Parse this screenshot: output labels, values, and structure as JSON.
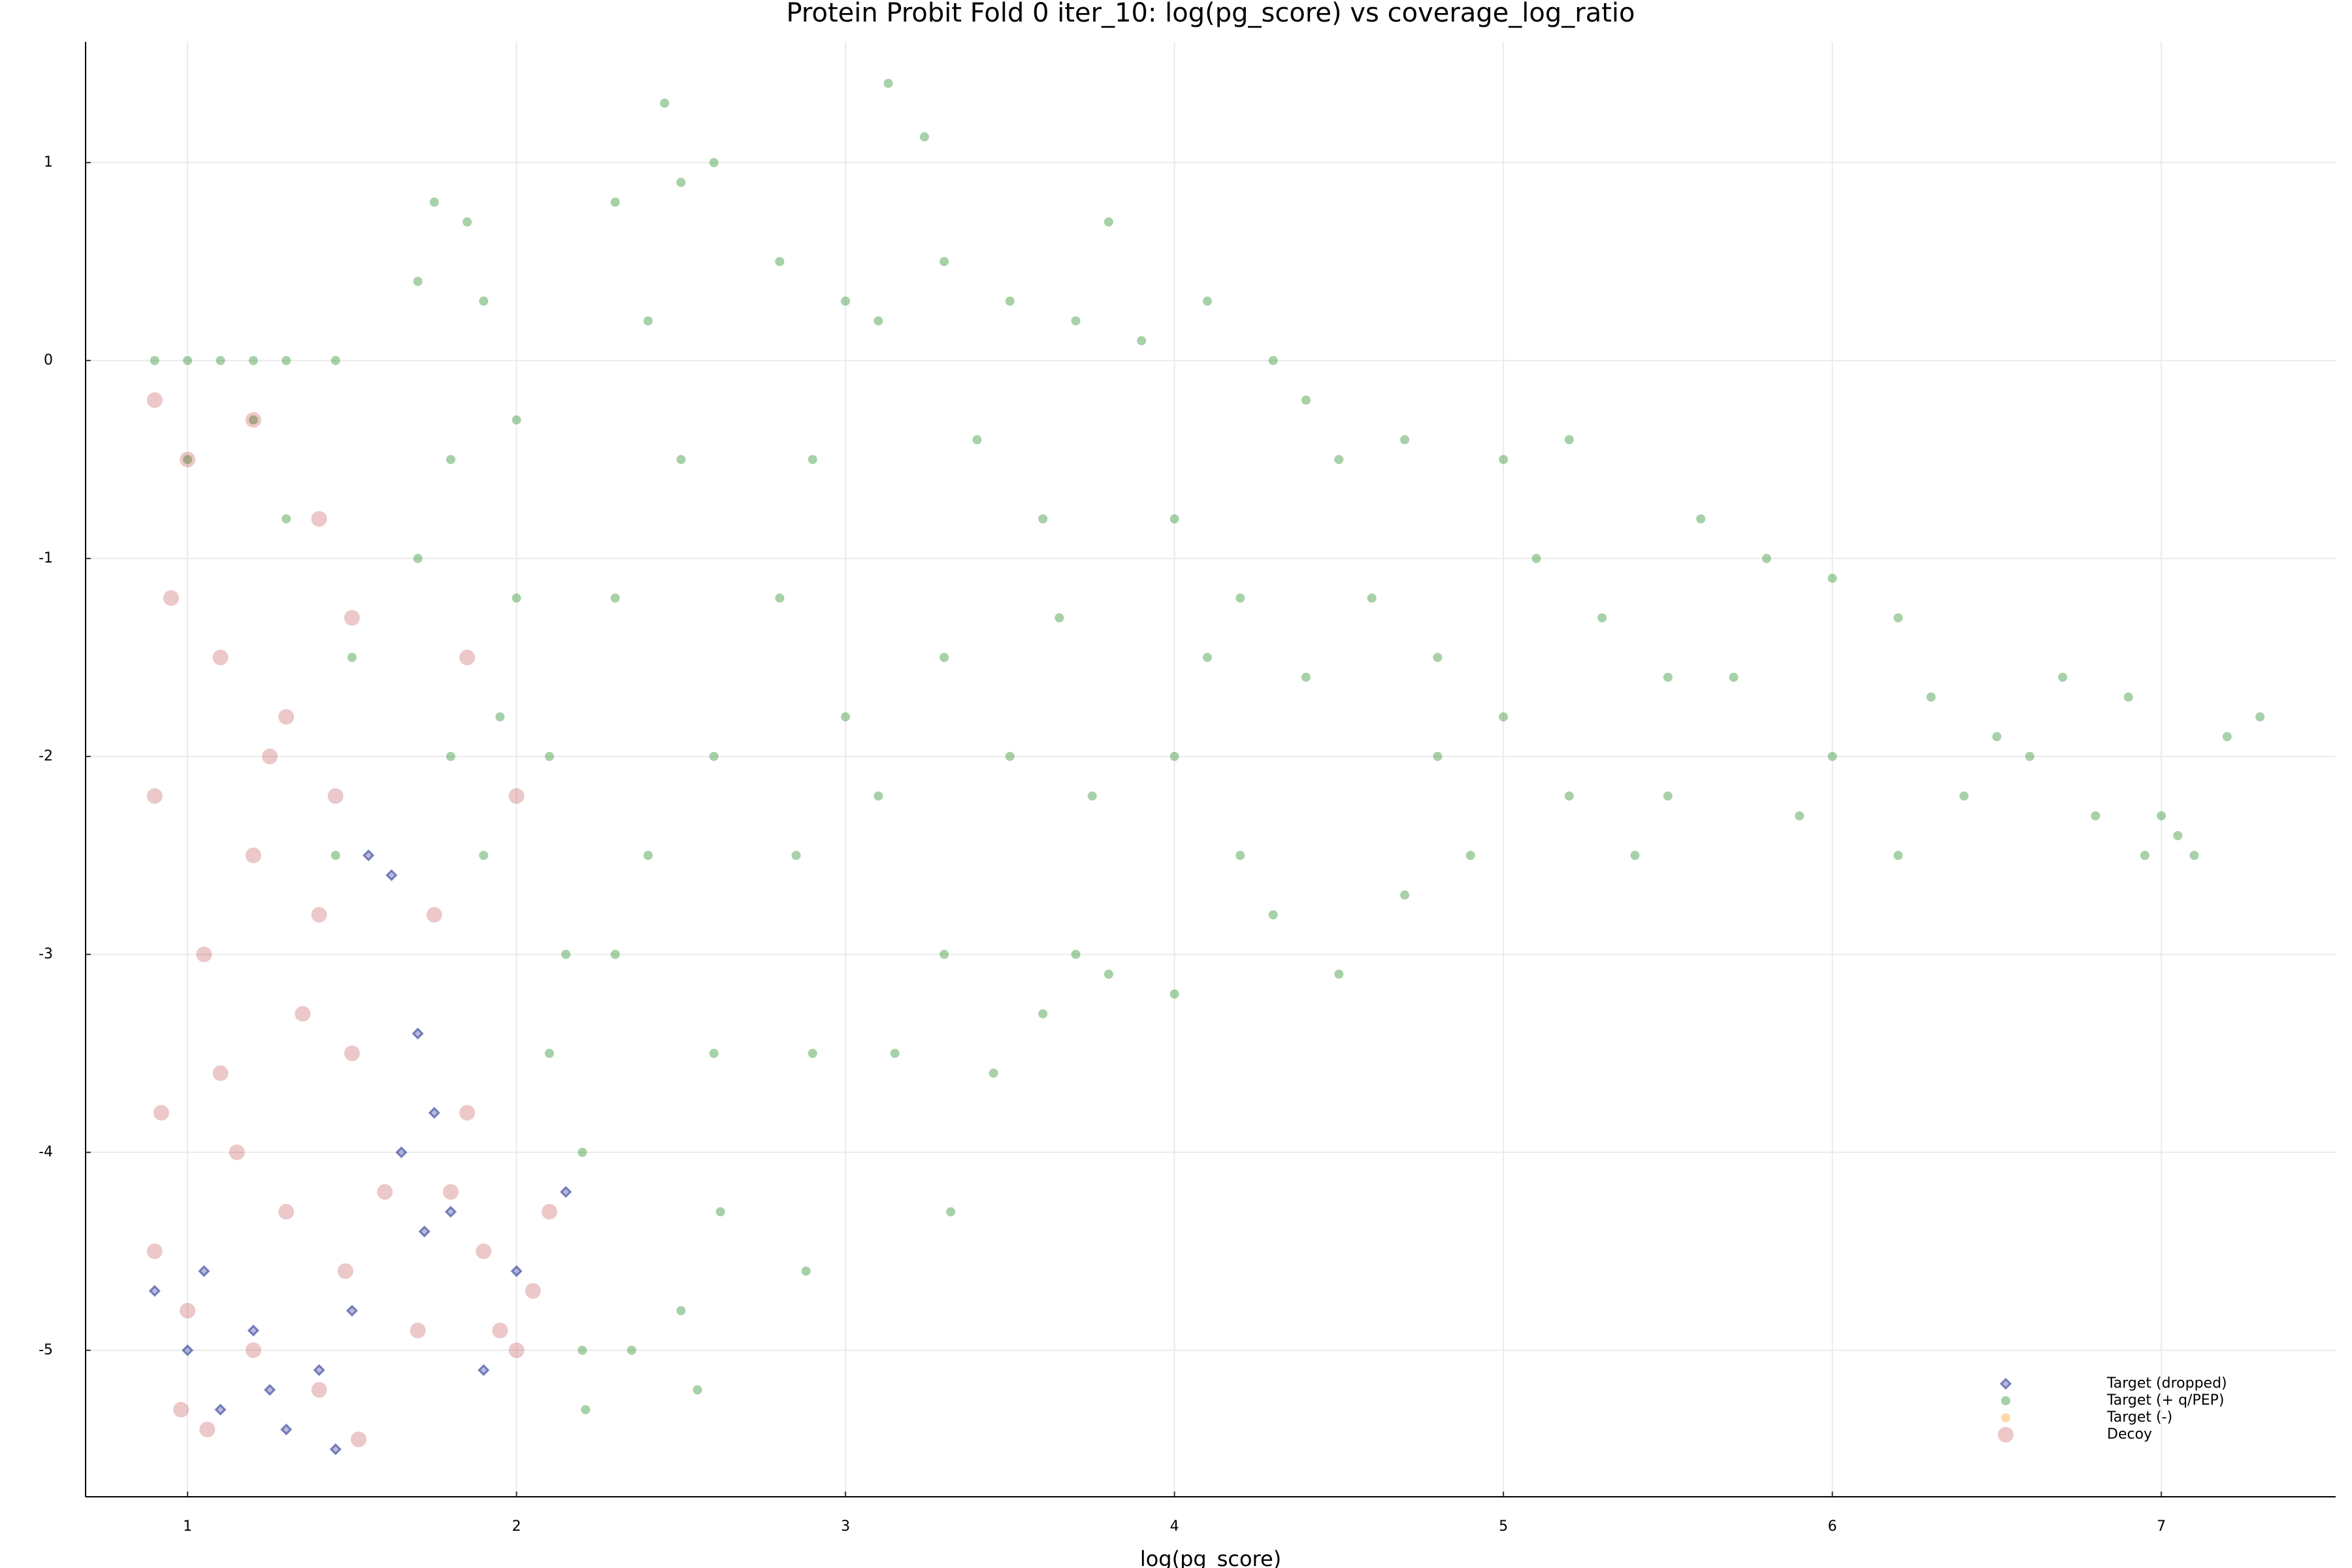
{
  "chart_data": {
    "type": "scatter",
    "title": "Protein Probit Fold 0 iter_10: log(pg_score) vs coverage_log_ratio",
    "x_label": "log(pg_score)",
    "xlim": [
      0.69,
      7.53
    ],
    "ylim": [
      -5.74,
      1.61
    ],
    "xticks": [
      1,
      2,
      3,
      4,
      5,
      6,
      7
    ],
    "yticks": [
      -5,
      -4,
      -3,
      -2,
      -1,
      0,
      1
    ],
    "grid": true,
    "legend": "lower right",
    "series": [
      {
        "name": "Target (dropped)",
        "color": "#2d3a9a",
        "marker": "diamond",
        "x": [
          0.9,
          1.0,
          1.1,
          1.2,
          1.3,
          1.4,
          1.5,
          1.45,
          1.05,
          1.25,
          1.7,
          1.75,
          1.8,
          2.15,
          1.65,
          1.55,
          1.62,
          1.9,
          2.0,
          1.72
        ],
        "values": [
          -4.7,
          -5.0,
          -5.3,
          -4.9,
          -5.4,
          -5.1,
          -4.8,
          -5.5,
          -4.6,
          -5.2,
          -3.4,
          -3.8,
          -4.3,
          -4.2,
          -4.0,
          -2.5,
          -2.6,
          -5.1,
          -4.6,
          -4.4
        ]
      },
      {
        "name": "Target (+ q/PEP)",
        "color": "#228b22",
        "marker": "circle",
        "x": [
          0.9,
          1.0,
          1.1,
          1.2,
          1.3,
          1.45,
          1.0,
          1.3,
          1.5,
          1.45,
          1.2,
          1.7,
          1.75,
          1.85,
          1.9,
          1.8,
          1.7,
          2.0,
          2.1,
          1.9,
          2.15,
          2.2,
          2.2,
          2.21,
          2.0,
          1.95,
          2.1,
          1.8,
          2.3,
          2.5,
          2.6,
          2.4,
          2.5,
          2.3,
          2.6,
          2.4,
          2.6,
          2.62,
          2.5,
          2.55,
          2.35,
          2.3,
          2.8,
          3.0,
          3.1,
          2.9,
          2.8,
          3.0,
          2.85,
          2.9,
          2.88,
          3.15,
          3.1,
          3.13,
          2.45,
          3.24,
          3.3,
          3.5,
          3.7,
          3.4,
          3.6,
          3.3,
          3.5,
          3.3,
          3.32,
          3.45,
          3.6,
          3.7,
          3.8,
          3.65,
          3.8,
          3.75,
          3.9,
          4.1,
          4.3,
          4.5,
          4.0,
          4.2,
          4.4,
          4.0,
          4.2,
          4.0,
          4.3,
          4.5,
          4.1,
          4.4,
          4.7,
          5.0,
          5.2,
          4.6,
          4.8,
          5.0,
          5.2,
          5.4,
          4.9,
          5.3,
          5.1,
          4.8,
          5.5,
          4.7,
          5.6,
          5.8,
          6.0,
          6.2,
          5.7,
          6.0,
          6.2,
          6.4,
          5.9,
          6.3,
          6.5,
          5.5,
          6.6,
          6.8,
          6.9,
          7.0,
          7.1,
          7.2,
          7.3,
          7.05,
          6.7,
          6.95
        ],
        "values": [
          0,
          0,
          0,
          0,
          0,
          0,
          -0.5,
          -0.8,
          -1.5,
          -2.5,
          -0.3,
          0.4,
          0.8,
          0.7,
          0.3,
          -0.5,
          -1,
          -1.2,
          -2,
          -2.5,
          -3,
          -4,
          -5,
          -5.3,
          -0.3,
          -1.8,
          -3.5,
          -2,
          0.8,
          0.9,
          1.0,
          0.2,
          -0.5,
          -1.2,
          -2,
          -2.5,
          -3.5,
          -4.3,
          -4.8,
          -5.2,
          -5,
          -3,
          0.5,
          0.3,
          0.2,
          -0.5,
          -1.2,
          -1.8,
          -2.5,
          -3.5,
          -4.6,
          -3.5,
          -2.2,
          1.4,
          1.3,
          1.13,
          0.5,
          0.3,
          0.2,
          -0.4,
          -0.8,
          -1.5,
          -2,
          -3,
          -4.3,
          -3.6,
          -3.3,
          -3,
          -3.1,
          -1.3,
          0.7,
          -2.2,
          0.1,
          0.3,
          0.0,
          -0.5,
          -0.8,
          -1.2,
          -1.6,
          -2.0,
          -2.5,
          -3.2,
          -2.8,
          -3.1,
          -1.5,
          -0.2,
          -0.4,
          -0.5,
          -0.4,
          -1.2,
          -1.5,
          -1.8,
          -2.2,
          -2.5,
          -2.5,
          -1.3,
          -1.0,
          -2.0,
          -1.6,
          -2.7,
          -0.8,
          -1.0,
          -1.1,
          -1.3,
          -1.6,
          -2.0,
          -2.5,
          -2.2,
          -2.3,
          -1.7,
          -1.9,
          -2.2,
          -2.0,
          -2.3,
          -1.7,
          -2.3,
          -2.5,
          -1.9,
          -1.8,
          -2.4,
          -1.6,
          -2.5
        ]
      },
      {
        "name": "Target (-)",
        "color": "#f5a623",
        "marker": "circle",
        "x": [],
        "values": []
      },
      {
        "name": "Decoy",
        "color": "#b22222",
        "marker": "circle",
        "x": [
          0.9,
          1.0,
          1.2,
          1.4,
          0.95,
          1.1,
          1.3,
          1.5,
          0.9,
          1.2,
          1.4,
          1.05,
          1.35,
          1.5,
          0.92,
          1.15,
          1.3,
          1.48,
          1.0,
          1.2,
          1.4,
          1.06,
          1.52,
          0.98,
          1.25,
          1.45,
          1.1,
          0.9,
          1.75,
          1.8,
          1.9,
          2.0,
          1.7,
          1.85,
          2.1,
          1.95,
          1.6,
          2.05,
          1.85,
          2.0
        ],
        "values": [
          -0.2,
          -0.5,
          -0.3,
          -0.8,
          -1.2,
          -1.5,
          -1.8,
          -1.3,
          -2.2,
          -2.5,
          -2.8,
          -3,
          -3.3,
          -3.5,
          -3.8,
          -4,
          -4.3,
          -4.6,
          -4.8,
          -5,
          -5.2,
          -5.4,
          -5.45,
          -5.3,
          -2,
          -2.2,
          -3.6,
          -4.5,
          -2.8,
          -4.2,
          -4.5,
          -5.0,
          -4.9,
          -3.8,
          -4.3,
          -4.9,
          -4.2,
          -4.7,
          -1.5,
          -2.2
        ]
      }
    ]
  }
}
